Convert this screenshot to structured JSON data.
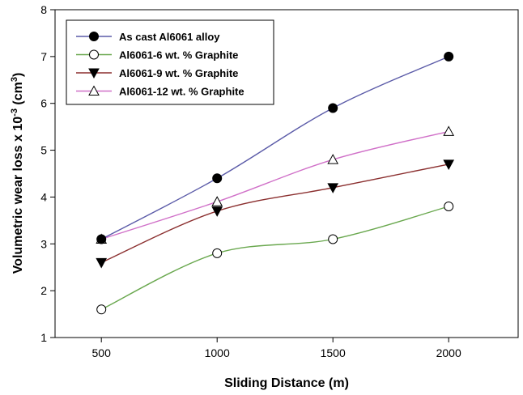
{
  "chart_data": {
    "type": "line",
    "xlabel": "Sliding Distance (m)",
    "ylabel": {
      "prefix": "Volumetric wear loss x 10",
      "exponent": "-3",
      "unit_open": " (cm",
      "unit_exponent": "3",
      "unit_close": ")"
    },
    "x": [
      500,
      1000,
      1500,
      2000
    ],
    "xlim": [
      300,
      2300
    ],
    "ylim": [
      1,
      8
    ],
    "xticks": [
      500,
      1000,
      1500,
      2000
    ],
    "yticks": [
      1,
      2,
      3,
      4,
      5,
      6,
      7,
      8
    ],
    "grid": false,
    "legend_position": "top-left",
    "series": [
      {
        "name": "As cast Al6061 alloy",
        "values": [
          3.1,
          4.4,
          5.9,
          7.0
        ],
        "color": "#5b5ba8",
        "marker": "filled-circle"
      },
      {
        "name": "Al6061-6 wt. % Graphite",
        "values": [
          1.6,
          2.8,
          3.1,
          3.8
        ],
        "color": "#6aa84f",
        "marker": "open-circle"
      },
      {
        "name": "Al6061-9 wt. % Graphite",
        "values": [
          2.6,
          3.7,
          4.2,
          4.7
        ],
        "color": "#8b2f2f",
        "marker": "filled-triangle-down"
      },
      {
        "name": "Al6061-12 wt. % Graphite",
        "values": [
          3.1,
          3.9,
          4.8,
          5.4
        ],
        "color": "#d070c8",
        "marker": "open-triangle-up"
      }
    ]
  }
}
